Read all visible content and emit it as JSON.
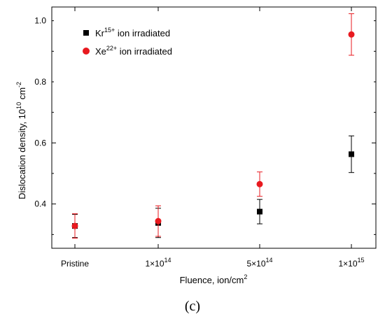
{
  "chart_data": {
    "type": "scatter",
    "panel_label": "(c)",
    "xlabel": {
      "prefix": "Fluence, ion/cm",
      "sup": "2"
    },
    "ylabel": {
      "prefix": "Dislocation density, 10",
      "sup1": "10",
      "mid": " cm",
      "sup2": "-2"
    },
    "categories": [
      {
        "base": "Pristine",
        "exp": ""
      },
      {
        "base": "1×10",
        "exp": "14"
      },
      {
        "base": "5×10",
        "exp": "14"
      },
      {
        "base": "1×10",
        "exp": "15"
      }
    ],
    "ylim": [
      0.255,
      1.045
    ],
    "yticks": [
      0.4,
      0.6,
      0.8,
      1.0
    ],
    "ytick_labels": [
      "0.4",
      "0.6",
      "0.8",
      "1.0"
    ],
    "legend_position": "top-left",
    "series": [
      {
        "name_base": "Kr",
        "name_sup": "15+",
        "name_rest": " ion irradiated",
        "marker": "square",
        "color": "#000000",
        "values": [
          0.328,
          0.338,
          0.375,
          0.563
        ],
        "errors": [
          0.038,
          0.048,
          0.04,
          0.06
        ]
      },
      {
        "name_base": "Xe",
        "name_sup": "22+",
        "name_rest": " ion irradiated",
        "marker": "circle",
        "color": "#e8191f",
        "values": [
          0.328,
          0.344,
          0.465,
          0.955
        ],
        "errors": [
          0.04,
          0.05,
          0.04,
          0.068
        ]
      }
    ]
  }
}
